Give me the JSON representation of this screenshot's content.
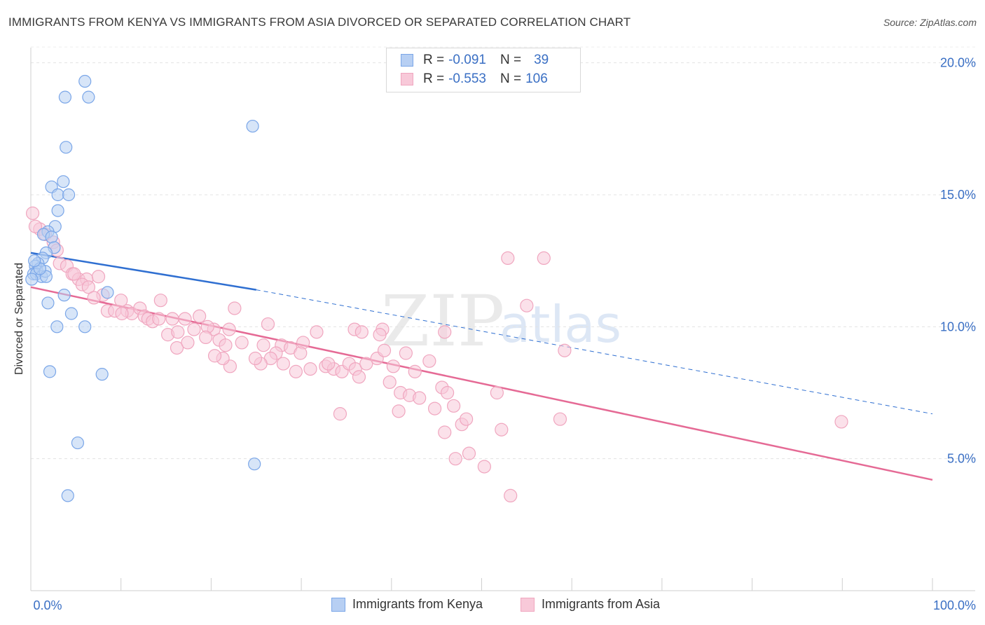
{
  "title": "IMMIGRANTS FROM KENYA VS IMMIGRANTS FROM ASIA DIVORCED OR SEPARATED CORRELATION CHART",
  "source": "Source: ZipAtlas.com",
  "watermark": {
    "zip": "ZIP",
    "atlas": "atlas"
  },
  "legend": {
    "kenya": {
      "r_label": "R =",
      "r_value": "-0.091",
      "n_label": "N =",
      "n_value": "39"
    },
    "asia": {
      "r_label": "R =",
      "r_value": "-0.553",
      "n_label": "N =",
      "n_value": "106"
    }
  },
  "bottom_legend": {
    "kenya": "Immigrants from Kenya",
    "asia": "Immigrants from Asia"
  },
  "chart_data": {
    "type": "scatter",
    "title": "IMMIGRANTS FROM KENYA VS IMMIGRANTS FROM ASIA DIVORCED OR SEPARATED CORRELATION CHART",
    "xlabel": "",
    "ylabel": "Divorced or Separated",
    "xlim": [
      0,
      100
    ],
    "ylim": [
      0,
      21
    ],
    "x_tick_labels": [
      "0.0%",
      "100.0%"
    ],
    "y_ticks": [
      5,
      10,
      15,
      20
    ],
    "y_tick_labels": [
      "5.0%",
      "10.0%",
      "15.0%",
      "20.0%"
    ],
    "colors": {
      "kenya": "#7aa6e8",
      "kenya_fill": "#b7cff3",
      "kenya_line": "#2f6fd1",
      "asia": "#f0a6bf",
      "asia_fill": "#f8c9d9",
      "asia_line": "#e56a95",
      "axis_text": "#3a6fc4"
    },
    "series": [
      {
        "name": "Immigrants from Kenya",
        "points": [
          [
            6.0,
            19.3
          ],
          [
            3.8,
            18.7
          ],
          [
            6.4,
            18.7
          ],
          [
            24.6,
            17.6
          ],
          [
            3.9,
            16.8
          ],
          [
            3.6,
            15.5
          ],
          [
            2.3,
            15.3
          ],
          [
            3.0,
            15.0
          ],
          [
            4.2,
            15.0
          ],
          [
            3.0,
            14.4
          ],
          [
            2.7,
            13.8
          ],
          [
            1.9,
            13.6
          ],
          [
            1.4,
            13.5
          ],
          [
            2.3,
            13.4
          ],
          [
            2.6,
            13.0
          ],
          [
            1.7,
            12.8
          ],
          [
            1.3,
            12.6
          ],
          [
            0.8,
            12.4
          ],
          [
            0.5,
            12.3
          ],
          [
            0.7,
            12.1
          ],
          [
            0.3,
            12.0
          ],
          [
            0.6,
            12.0
          ],
          [
            1.2,
            11.9
          ],
          [
            1.6,
            12.1
          ],
          [
            0.1,
            11.8
          ],
          [
            1.7,
            11.9
          ],
          [
            8.5,
            11.3
          ],
          [
            3.7,
            11.2
          ],
          [
            1.9,
            10.9
          ],
          [
            4.5,
            10.5
          ],
          [
            2.9,
            10.0
          ],
          [
            6.0,
            10.0
          ],
          [
            2.1,
            8.3
          ],
          [
            7.9,
            8.2
          ],
          [
            5.2,
            5.6
          ],
          [
            24.8,
            4.8
          ],
          [
            4.1,
            3.6
          ],
          [
            1.0,
            12.2
          ],
          [
            0.4,
            12.5
          ]
        ],
        "trend": {
          "x": [
            0,
            25
          ],
          "y": [
            12.8,
            11.4
          ],
          "dashed_to": {
            "x": [
              25,
              100
            ],
            "y": [
              11.4,
              6.7
            ]
          }
        }
      },
      {
        "name": "Immigrants from Asia",
        "points": [
          [
            0.2,
            14.3
          ],
          [
            1.0,
            13.7
          ],
          [
            1.6,
            13.5
          ],
          [
            2.5,
            13.2
          ],
          [
            2.9,
            12.9
          ],
          [
            3.2,
            12.4
          ],
          [
            4.0,
            12.3
          ],
          [
            4.6,
            12.0
          ],
          [
            5.3,
            11.8
          ],
          [
            6.2,
            11.8
          ],
          [
            5.7,
            11.6
          ],
          [
            6.4,
            11.5
          ],
          [
            8.0,
            11.2
          ],
          [
            7.0,
            11.1
          ],
          [
            10.0,
            11.0
          ],
          [
            14.4,
            11.0
          ],
          [
            8.5,
            10.6
          ],
          [
            9.3,
            10.6
          ],
          [
            10.7,
            10.6
          ],
          [
            11.2,
            10.5
          ],
          [
            12.1,
            10.7
          ],
          [
            12.6,
            10.4
          ],
          [
            13.0,
            10.3
          ],
          [
            13.5,
            10.2
          ],
          [
            14.2,
            10.3
          ],
          [
            15.7,
            10.3
          ],
          [
            10.1,
            10.5
          ],
          [
            18.7,
            10.4
          ],
          [
            17.1,
            10.3
          ],
          [
            22.6,
            10.7
          ],
          [
            26.3,
            10.1
          ],
          [
            35.9,
            9.9
          ],
          [
            36.7,
            9.8
          ],
          [
            31.7,
            9.8
          ],
          [
            20.3,
            9.9
          ],
          [
            19.6,
            10.0
          ],
          [
            22.0,
            9.9
          ],
          [
            15.2,
            9.7
          ],
          [
            16.2,
            9.2
          ],
          [
            17.4,
            9.4
          ],
          [
            18.1,
            9.9
          ],
          [
            19.4,
            9.6
          ],
          [
            20.9,
            9.5
          ],
          [
            21.6,
            9.3
          ],
          [
            23.4,
            9.4
          ],
          [
            25.8,
            9.3
          ],
          [
            27.8,
            9.3
          ],
          [
            28.8,
            9.2
          ],
          [
            30.2,
            9.4
          ],
          [
            29.9,
            9.0
          ],
          [
            27.2,
            9.0
          ],
          [
            26.6,
            8.8
          ],
          [
            25.5,
            8.6
          ],
          [
            24.9,
            8.8
          ],
          [
            22.1,
            8.5
          ],
          [
            21.3,
            8.8
          ],
          [
            20.4,
            8.9
          ],
          [
            28.0,
            8.6
          ],
          [
            29.4,
            8.3
          ],
          [
            31.0,
            8.4
          ],
          [
            32.7,
            8.5
          ],
          [
            33.6,
            8.4
          ],
          [
            34.5,
            8.3
          ],
          [
            35.3,
            8.6
          ],
          [
            36.0,
            8.4
          ],
          [
            37.2,
            8.6
          ],
          [
            38.4,
            8.8
          ],
          [
            39.2,
            9.1
          ],
          [
            36.4,
            8.1
          ],
          [
            40.2,
            8.5
          ],
          [
            33.0,
            8.6
          ],
          [
            42.6,
            8.3
          ],
          [
            39.8,
            7.9
          ],
          [
            44.2,
            8.7
          ],
          [
            45.6,
            7.7
          ],
          [
            41.0,
            7.5
          ],
          [
            42.0,
            7.4
          ],
          [
            43.1,
            7.3
          ],
          [
            46.2,
            7.5
          ],
          [
            44.8,
            6.9
          ],
          [
            34.3,
            6.7
          ],
          [
            40.8,
            6.8
          ],
          [
            45.9,
            6.0
          ],
          [
            46.9,
            7.0
          ],
          [
            47.8,
            6.3
          ],
          [
            48.3,
            6.5
          ],
          [
            52.2,
            6.1
          ],
          [
            51.7,
            7.5
          ],
          [
            58.7,
            6.5
          ],
          [
            89.9,
            6.4
          ],
          [
            48.6,
            5.2
          ],
          [
            47.1,
            5.0
          ],
          [
            50.3,
            4.7
          ],
          [
            53.2,
            3.6
          ],
          [
            55.0,
            10.8
          ],
          [
            41.6,
            9.0
          ],
          [
            45.9,
            9.8
          ],
          [
            59.2,
            9.1
          ],
          [
            52.9,
            12.6
          ],
          [
            56.9,
            12.6
          ],
          [
            39.0,
            9.9
          ],
          [
            38.7,
            9.7
          ],
          [
            16.3,
            9.8
          ],
          [
            7.5,
            11.9
          ],
          [
            0.5,
            13.8
          ],
          [
            4.8,
            12.0
          ]
        ],
        "trend": {
          "x": [
            0,
            100
          ],
          "y": [
            11.5,
            4.2
          ]
        }
      }
    ]
  }
}
